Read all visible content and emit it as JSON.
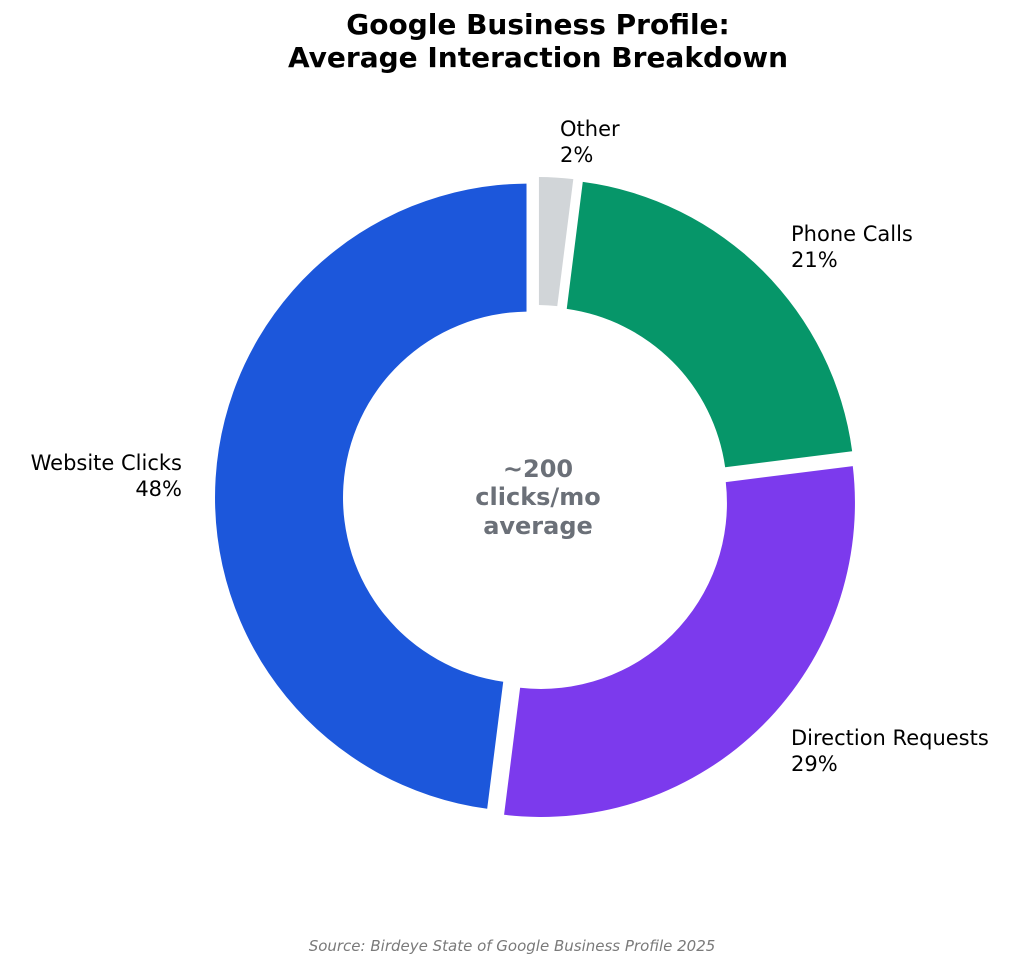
{
  "chart_data": {
    "type": "pie",
    "title": [
      "Google Business Profile:",
      "Average Interaction Breakdown"
    ],
    "center_label": [
      "~200",
      "clicks/mo",
      "average"
    ],
    "source": "Source: Birdeye State of Google Business Profile 2025",
    "slices": [
      {
        "name": "Other",
        "value": 2,
        "label": "2%",
        "color": "#d1d5d8"
      },
      {
        "name": "Phone Calls",
        "value": 21,
        "label": "21%",
        "color": "#069669"
      },
      {
        "name": "Direction Requests",
        "value": 29,
        "label": "29%",
        "color": "#7c3aed"
      },
      {
        "name": "Website Clicks",
        "value": 48,
        "label": "48%",
        "color": "#1c57db"
      }
    ],
    "start_angle": "12 o'clock",
    "direction": "clockwise",
    "donut": true,
    "exploded": true
  }
}
